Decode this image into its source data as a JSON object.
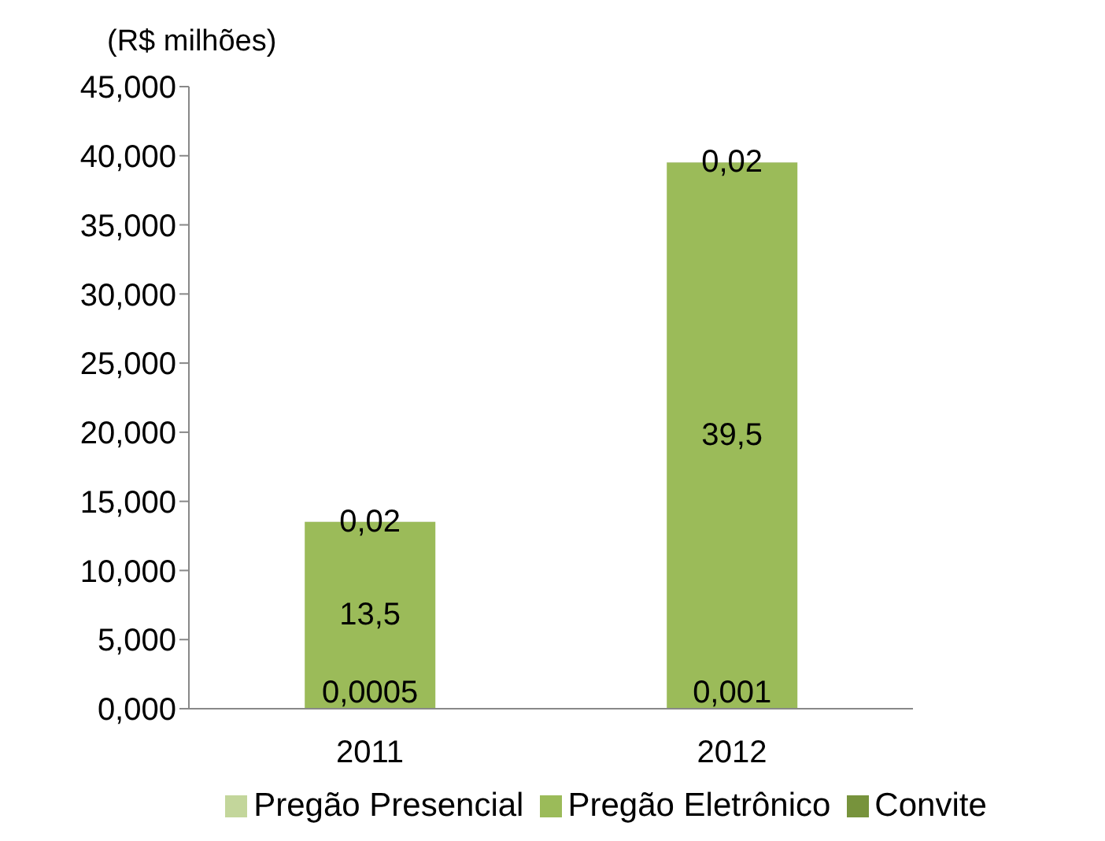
{
  "chart_data": {
    "type": "bar",
    "stacked": true,
    "ylabel": "(R$ milhões)",
    "categories": [
      "2011",
      "2012"
    ],
    "series": [
      {
        "name": "Pregão Presencial",
        "color": "#c3d69b",
        "values": [
          0.0005,
          0.001
        ],
        "value_labels": [
          "0,0005",
          "0,001"
        ]
      },
      {
        "name": "Pregão Eletrônico",
        "color": "#9bbb59",
        "values": [
          13.5,
          39.5
        ],
        "value_labels": [
          "13,5",
          "39,5"
        ]
      },
      {
        "name": "Convite",
        "color": "#77933c",
        "values": [
          0.02,
          0.02
        ],
        "value_labels": [
          "0,02",
          "0,02"
        ]
      }
    ],
    "ylim": [
      0,
      45
    ],
    "yticks": [
      {
        "value": 0,
        "label": "0,000"
      },
      {
        "value": 5,
        "label": "5,000"
      },
      {
        "value": 10,
        "label": "10,000"
      },
      {
        "value": 15,
        "label": "15,000"
      },
      {
        "value": 20,
        "label": "20,000"
      },
      {
        "value": 25,
        "label": "25,000"
      },
      {
        "value": 30,
        "label": "30,000"
      },
      {
        "value": 35,
        "label": "35,000"
      },
      {
        "value": 40,
        "label": "40,000"
      },
      {
        "value": 45,
        "label": "45,000"
      }
    ],
    "grid": false,
    "legend": "bottom"
  }
}
